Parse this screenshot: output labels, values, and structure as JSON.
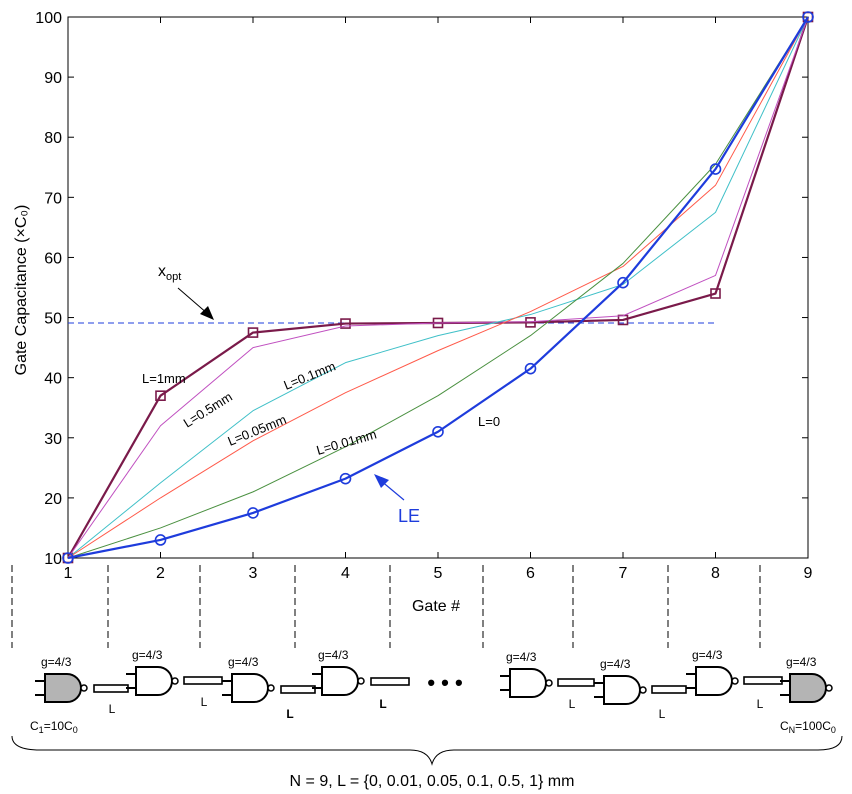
{
  "chart_data": {
    "type": "line",
    "xlabel": "Gate #",
    "ylabel": "Gate Capacitance (×C₀)",
    "xlim": [
      1,
      9
    ],
    "ylim": [
      10,
      100
    ],
    "x": [
      1,
      2,
      3,
      4,
      5,
      6,
      7,
      8,
      9
    ],
    "x_ticks": [
      "1",
      "2",
      "3",
      "4",
      "5",
      "6",
      "7",
      "8",
      "9"
    ],
    "y_ticks": [
      "10",
      "20",
      "30",
      "40",
      "50",
      "60",
      "70",
      "80",
      "90",
      "100"
    ],
    "grid": false,
    "series": [
      {
        "name": "L=1mm",
        "color": "#7a1a4a",
        "marker": "square",
        "values": [
          10,
          37,
          47.5,
          49,
          49.1,
          49.2,
          49.6,
          54,
          100
        ]
      },
      {
        "name": "L=0.5mm",
        "color": "#c050c0",
        "marker": "none",
        "values": [
          10,
          32,
          45,
          48.6,
          49.1,
          49.3,
          50.3,
          57,
          100
        ]
      },
      {
        "name": "L=0.1mm",
        "color": "#40c0c8",
        "marker": "none",
        "values": [
          10,
          22.5,
          34.5,
          42.5,
          47,
          50.5,
          55.5,
          67.5,
          100
        ]
      },
      {
        "name": "L=0.05mm",
        "color": "#ff5a4a",
        "marker": "none",
        "values": [
          10,
          20,
          29.5,
          37.5,
          44.5,
          51,
          58.5,
          72,
          100
        ]
      },
      {
        "name": "L=0.01mm",
        "color": "#4a9040",
        "marker": "none",
        "values": [
          10,
          15,
          21,
          28.5,
          37,
          47,
          59,
          75.5,
          100
        ]
      },
      {
        "name": "L=0",
        "color": "#1e3cdc",
        "marker": "circle",
        "values": [
          10,
          13,
          17.5,
          23.2,
          31,
          41.5,
          55.8,
          74.7,
          100
        ]
      }
    ],
    "reference_line": {
      "label_main": "x",
      "label_sub": "opt",
      "value": 49.1,
      "color": "#1e3cdc"
    },
    "annotations": {
      "le_label": "LE",
      "labels": [
        "L=1mm",
        "L=0.5mm",
        "L=0.1mm",
        "L=0.05mm",
        "L=0.01mm",
        "L=0"
      ]
    }
  },
  "circuit": {
    "gate_label": "g=4/3",
    "wire_label": "L",
    "ellipsis": "• • •",
    "first_cap_main": "C",
    "first_cap_sub1": "1",
    "first_cap_eq": "=10C",
    "first_cap_sub2": "0",
    "last_cap_main": "C",
    "last_cap_sub1": "N",
    "last_cap_eq": "=100C",
    "last_cap_sub2": "0",
    "caption": "N = 9, L = {0, 0.01, 0.05, 0.1, 0.5, 1} mm",
    "colors": {
      "end_gate_fill": "#b4b4b4",
      "gate_fill": "#ffffff"
    }
  }
}
